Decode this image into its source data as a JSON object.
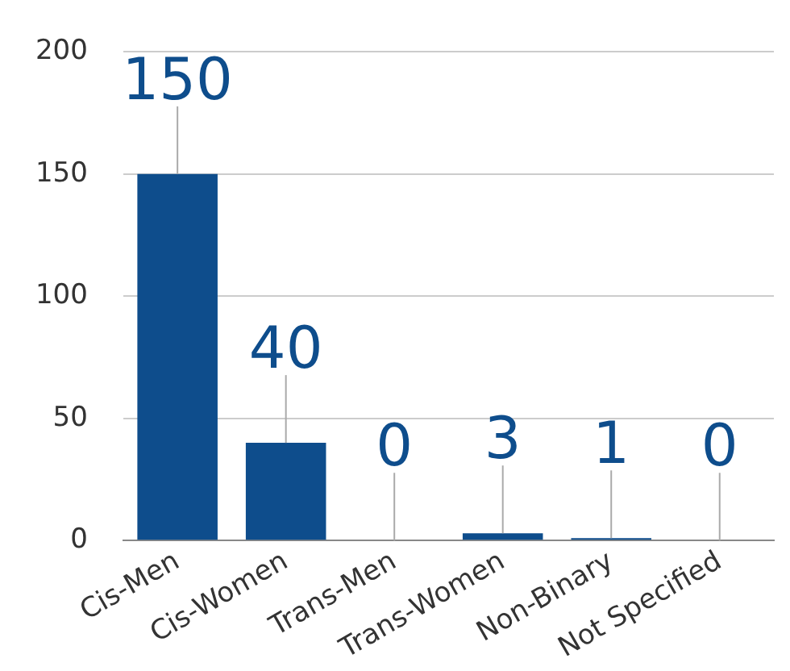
{
  "chart_data": {
    "type": "bar",
    "categories": [
      "Cis-Men",
      "Cis-Women",
      "Trans-Men",
      "Trans-Women",
      "Non-Binary",
      "Not Specified"
    ],
    "values": [
      150,
      40,
      0,
      3,
      1,
      0
    ],
    "color": "#0e4d8c",
    "ylim": [
      0,
      200
    ],
    "yticks": [
      0,
      50,
      100,
      150,
      200
    ],
    "grid": "y",
    "data_labels": true
  }
}
